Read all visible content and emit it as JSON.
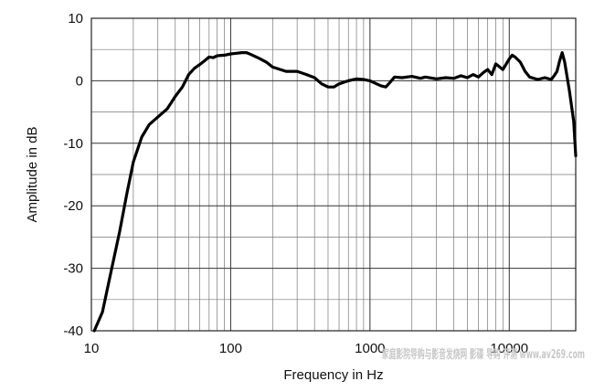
{
  "chart_data": {
    "type": "line",
    "xlabel": "Frequency in Hz",
    "ylabel": "Amplitude in dB",
    "xscale": "log",
    "xlim": [
      10,
      30000
    ],
    "ylim": [
      -40,
      10
    ],
    "x_ticks": [
      10,
      100,
      1000,
      10000
    ],
    "x_tick_labels": [
      "10",
      "100",
      "1000",
      "10000"
    ],
    "y_ticks": [
      10,
      0,
      -10,
      -20,
      -30,
      -40
    ],
    "y_tick_labels": [
      "10",
      "0",
      "-10",
      "-20",
      "-30",
      "-40"
    ],
    "grid": true,
    "series": [
      {
        "x": [
          10.5,
          12,
          14,
          16,
          18,
          20,
          23,
          26,
          30,
          35,
          40,
          45,
          50,
          55,
          60,
          65,
          70,
          75,
          80,
          90,
          100,
          110,
          120,
          130,
          140,
          160,
          180,
          200,
          250,
          300,
          350,
          400,
          450,
          500,
          550,
          600,
          700,
          800,
          900,
          1000,
          1200,
          1300,
          1400,
          1500,
          1700,
          2000,
          2300,
          2500,
          3000,
          3500,
          4000,
          4500,
          5000,
          5500,
          6000,
          6500,
          7000,
          7500,
          8000,
          9000,
          10000,
          10500,
          11000,
          12000,
          13000,
          14000,
          16000,
          18000,
          20000,
          21000,
          22000,
          23000,
          24000,
          25000,
          27000,
          29000,
          30000
        ],
        "y": [
          -40,
          -37,
          -30,
          -24,
          -18,
          -13,
          -9,
          -7,
          -5.8,
          -4.5,
          -2.5,
          -1,
          1,
          2,
          2.6,
          3.2,
          3.8,
          3.7,
          4,
          4.1,
          4.3,
          4.4,
          4.5,
          4.5,
          4.2,
          3.6,
          3,
          2.2,
          1.5,
          1.5,
          1,
          0.5,
          -0.5,
          -1,
          -1,
          -0.5,
          0,
          0.3,
          0.2,
          0,
          -0.8,
          -1,
          -0.2,
          0.6,
          0.5,
          0.7,
          0.4,
          0.6,
          0.3,
          0.5,
          0.4,
          0.8,
          0.5,
          1,
          0.6,
          1.3,
          1.8,
          1,
          2.7,
          1.8,
          3.5,
          4.1,
          3.8,
          3,
          1.5,
          0.6,
          0.2,
          0.5,
          0.2,
          0.8,
          1.5,
          3.2,
          4.5,
          3,
          -1.5,
          -6.5,
          -12
        ]
      }
    ]
  },
  "watermark": "家庭影院导购与影音发烧网 影碟 导购 评测 www.av269.com"
}
